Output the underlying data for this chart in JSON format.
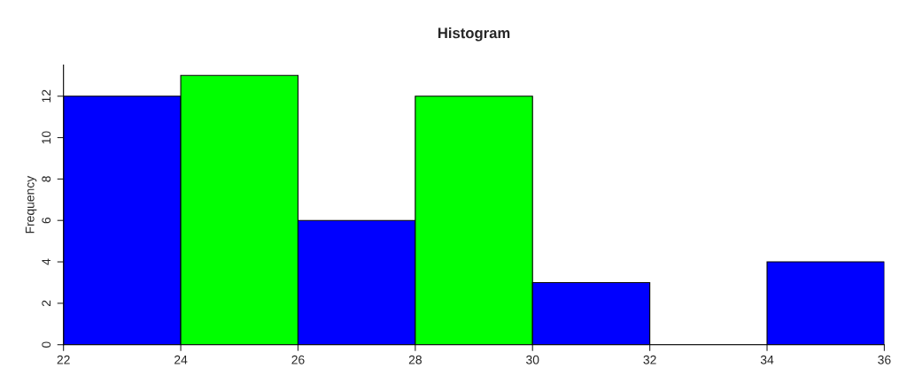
{
  "chart_data": {
    "type": "histogram",
    "title": "Histogram",
    "ylabel": "Frequency",
    "bins": [
      22,
      24,
      26,
      28,
      30,
      32,
      34,
      36
    ],
    "values": [
      12,
      13,
      6,
      12,
      3,
      0,
      4
    ],
    "colors": [
      "#0000ff",
      "#00ff00",
      "#0000ff",
      "#00ff00",
      "#0000ff",
      "#000000",
      "#0000ff"
    ],
    "xlim": [
      22,
      36
    ],
    "xticks": [
      22,
      24,
      26,
      28,
      30,
      32,
      34,
      36
    ],
    "ylim": [
      0,
      13.5
    ],
    "yticks": [
      0,
      2,
      4,
      6,
      8,
      10,
      12
    ],
    "grid": false
  }
}
